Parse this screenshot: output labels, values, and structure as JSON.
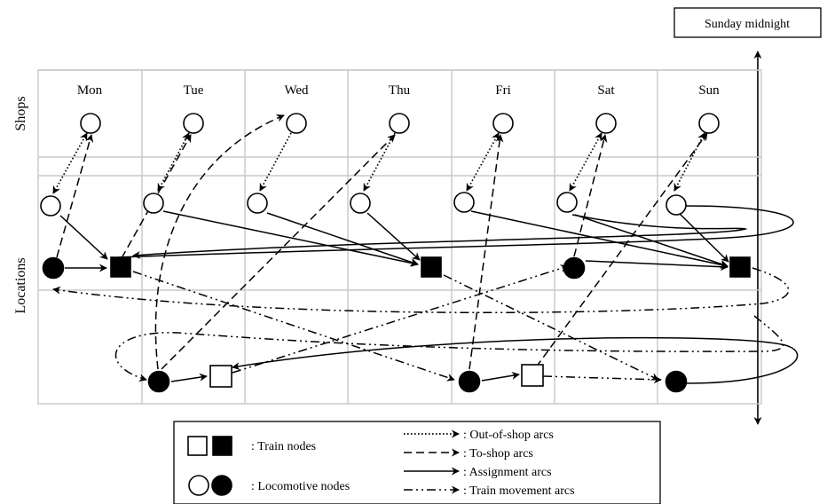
{
  "top_marker": {
    "label": "Sunday midnight"
  },
  "row_labels": {
    "shops": "Shops",
    "locations": "Locations"
  },
  "days": [
    "Mon",
    "Tue",
    "Wed",
    "Thu",
    "Fri",
    "Sat",
    "Sun"
  ],
  "legend": {
    "node_items": [
      {
        "key": "train",
        "label": ": Train nodes"
      },
      {
        "key": "locomotive",
        "label": ": Locomotive nodes"
      }
    ],
    "arc_items": [
      {
        "key": "out-of-shop",
        "label": ": Out-of-shop arcs"
      },
      {
        "key": "to-shop",
        "label": ": To-shop arcs"
      },
      {
        "key": "assignment",
        "label": ": Assignment arcs"
      },
      {
        "key": "train-movement",
        "label": ": Train movement arcs"
      }
    ]
  }
}
